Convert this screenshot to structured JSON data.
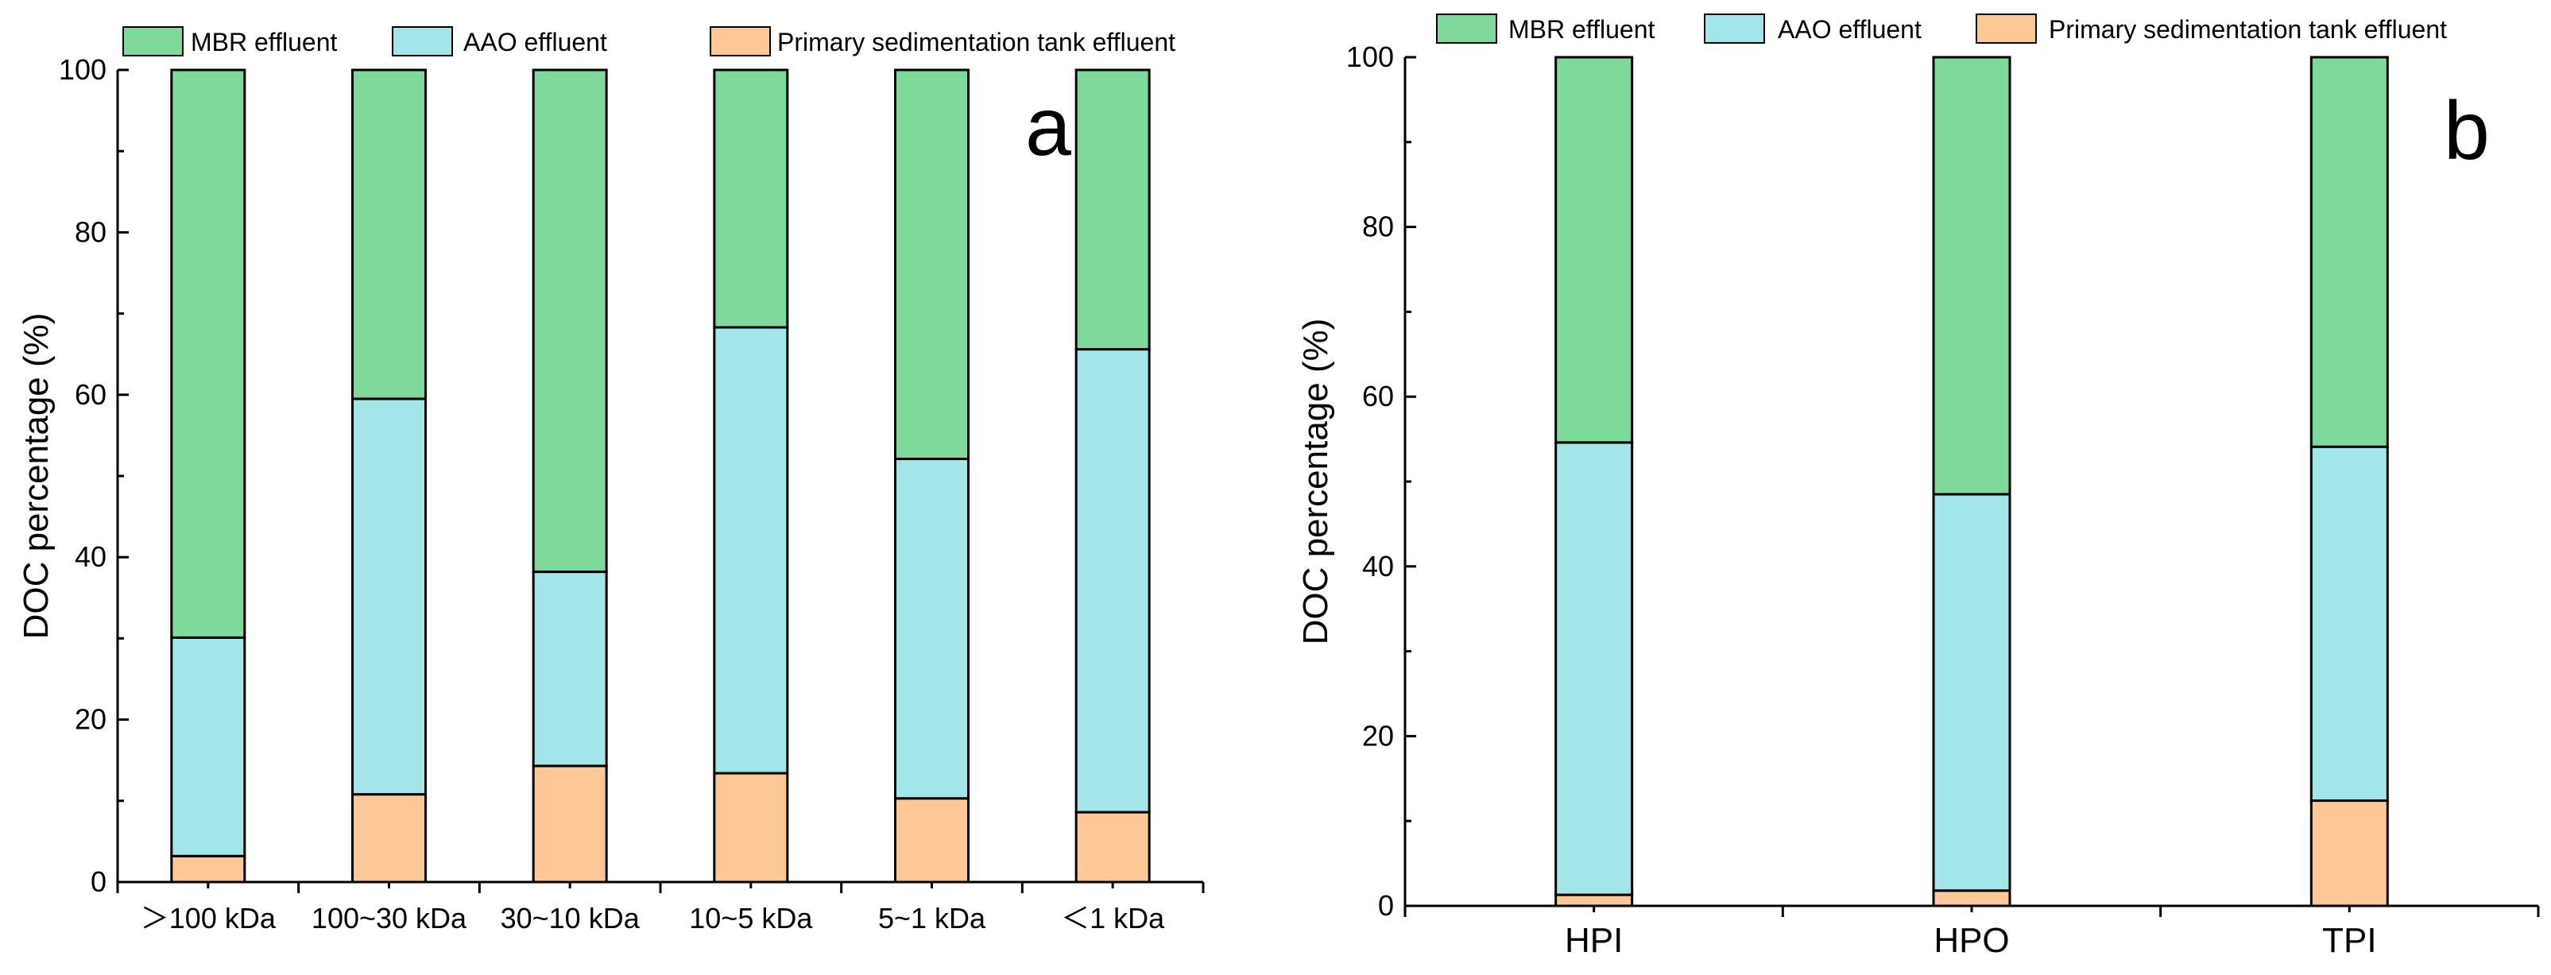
{
  "colors": {
    "mbr": "#7fd99a",
    "aao": "#a3e6ea",
    "primary": "#fdc896",
    "stroke": "#000000"
  },
  "chart_data": [
    {
      "type": "bar",
      "stacked": true,
      "panel": "a",
      "categories": [
        ">100 kDa",
        "100~30 kDa",
        "30~10 kDa",
        "10~5 kDa",
        "5~1 kDa",
        "<1 kDa"
      ],
      "category_labels": [
        "＞100 kDa",
        "100~30 kDa",
        "30~10 kDa",
        "10~5 kDa",
        "5~1 kDa",
        "＜1 kDa"
      ],
      "series": [
        {
          "name": "Primary sedimentation tank effluent",
          "values": [
            3.2,
            10.8,
            14.3,
            13.4,
            10.3,
            8.6
          ]
        },
        {
          "name": "AAO effluent",
          "values": [
            26.9,
            48.7,
            23.9,
            54.9,
            41.8,
            57.0
          ]
        },
        {
          "name": "MBR effluent",
          "values": [
            69.9,
            40.5,
            61.8,
            31.7,
            47.9,
            34.4
          ]
        }
      ],
      "legend": [
        "MBR effluent",
        "AAO effluent",
        "Primary sedimentation tank effluent"
      ],
      "legend_position": "top",
      "ylabel": "DOC percentage (%)",
      "xlabel": "",
      "ylim": [
        0,
        100
      ],
      "yticks": [
        "0",
        "20",
        "40",
        "60",
        "80",
        "100"
      ],
      "grid": false
    },
    {
      "type": "bar",
      "stacked": true,
      "panel": "b",
      "categories": [
        "HPI",
        "HPO",
        "TPI"
      ],
      "category_labels": [
        "HPI",
        "HPO",
        "TPI"
      ],
      "series": [
        {
          "name": "Primary sedimentation tank effluent",
          "values": [
            1.3,
            1.8,
            12.4
          ]
        },
        {
          "name": "AAO effluent",
          "values": [
            53.3,
            46.7,
            41.7
          ]
        },
        {
          "name": "MBR effluent",
          "values": [
            45.4,
            51.5,
            45.9
          ]
        }
      ],
      "legend": [
        "MBR effluent",
        "AAO effluent",
        "Primary sedimentation tank effluent"
      ],
      "legend_position": "top",
      "ylabel": "DOC percentage (%)",
      "xlabel": "",
      "ylim": [
        0,
        100
      ],
      "yticks": [
        "0",
        "20",
        "40",
        "60",
        "80",
        "100"
      ],
      "grid": false
    }
  ]
}
